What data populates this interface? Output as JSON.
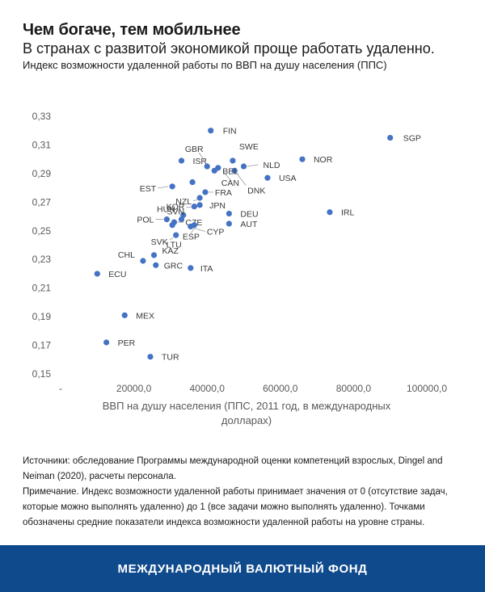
{
  "header": {
    "title": "Чем богаче, тем мобильнее",
    "subtitle": "В странах с развитой экономикой проще работать удаленно.",
    "caption": "Индекс возможности удаленной работы по ВВП на душу населения (ППС)"
  },
  "chart_data": {
    "type": "scatter",
    "xlabel": "ВВП на душу населения (ППС, 2011 год, в международных долларах)",
    "ylabel": "",
    "xlim": [
      0,
      100000
    ],
    "ylim": [
      0.15,
      0.33
    ],
    "x_ticks": [
      "-",
      "20000,0",
      "40000,0",
      "60000,0",
      "80000,0",
      "100000,0"
    ],
    "y_ticks": [
      "0,15",
      "0,17",
      "0,19",
      "0,21",
      "0,23",
      "0,25",
      "0,27",
      "0,29",
      "0,31",
      "0,33"
    ],
    "grid": false,
    "points": [
      {
        "label": "FIN",
        "x": 41000,
        "y": 0.32
      },
      {
        "label": "SGP",
        "x": 90000,
        "y": 0.315
      },
      {
        "label": "NOR",
        "x": 66000,
        "y": 0.3
      },
      {
        "label": "SWE",
        "x": 47000,
        "y": 0.299
      },
      {
        "label": "ISR",
        "x": 33000,
        "y": 0.299
      },
      {
        "label": "GBR",
        "x": 40000,
        "y": 0.295
      },
      {
        "label": "NLD",
        "x": 50000,
        "y": 0.295
      },
      {
        "label": "CAN",
        "x": 43000,
        "y": 0.294
      },
      {
        "label": "DNK",
        "x": 47500,
        "y": 0.292
      },
      {
        "label": "USA",
        "x": 56500,
        "y": 0.287
      },
      {
        "label": "BEL",
        "x": 42000,
        "y": 0.292
      },
      {
        "label": "",
        "x": 36000,
        "y": 0.284
      },
      {
        "label": "EST",
        "x": 30500,
        "y": 0.281
      },
      {
        "label": "FRA",
        "x": 39500,
        "y": 0.277
      },
      {
        "label": "NZL",
        "x": 38000,
        "y": 0.273
      },
      {
        "label": "JPN",
        "x": 38000,
        "y": 0.268
      },
      {
        "label": "KOR",
        "x": 36500,
        "y": 0.267
      },
      {
        "label": "HUN",
        "x": 33500,
        "y": 0.261
      },
      {
        "label": "SVN",
        "x": 33000,
        "y": 0.258
      },
      {
        "label": "DEU",
        "x": 46000,
        "y": 0.262
      },
      {
        "label": "IRL",
        "x": 73500,
        "y": 0.263
      },
      {
        "label": "POL",
        "x": 29000,
        "y": 0.258
      },
      {
        "label": "CZE",
        "x": 31000,
        "y": 0.256
      },
      {
        "label": "AUT",
        "x": 46000,
        "y": 0.255
      },
      {
        "label": "CYP",
        "x": 35500,
        "y": 0.253
      },
      {
        "label": "ESP",
        "x": 36500,
        "y": 0.254
      },
      {
        "label": "SVK",
        "x": 31500,
        "y": 0.247
      },
      {
        "label": "LTU",
        "x": 30500,
        "y": 0.254
      },
      {
        "label": "KAZ",
        "x": 25500,
        "y": 0.233
      },
      {
        "label": "CHL",
        "x": 22500,
        "y": 0.229
      },
      {
        "label": "GRC",
        "x": 26000,
        "y": 0.226
      },
      {
        "label": "ITA",
        "x": 35500,
        "y": 0.224
      },
      {
        "label": "ECU",
        "x": 10000,
        "y": 0.22
      },
      {
        "label": "MEX",
        "x": 17500,
        "y": 0.191
      },
      {
        "label": "PER",
        "x": 12500,
        "y": 0.172
      },
      {
        "label": "TUR",
        "x": 24500,
        "y": 0.162
      }
    ]
  },
  "notes": {
    "sources": "Источники: обследование Программы международной оценки компетенций взрослых, Dingel and Neiman (2020), расчеты персонала.",
    "note": "Примечание. Индекс возможности удаленной работы принимает значения от 0 (отсутствие задач, которые можно выполнять удаленно) до 1 (все задачи можно выполнять удаленно). Точками обозначены средние показатели индекса возможности удаленной работы на уровне страны."
  },
  "footer": {
    "org": "МЕЖДУНАРОДНЫЙ ВАЛЮТНЫЙ ФОНД"
  },
  "colors": {
    "point": "#4472c4",
    "footer": "#0f4a8c",
    "axis_text": "#595959"
  }
}
